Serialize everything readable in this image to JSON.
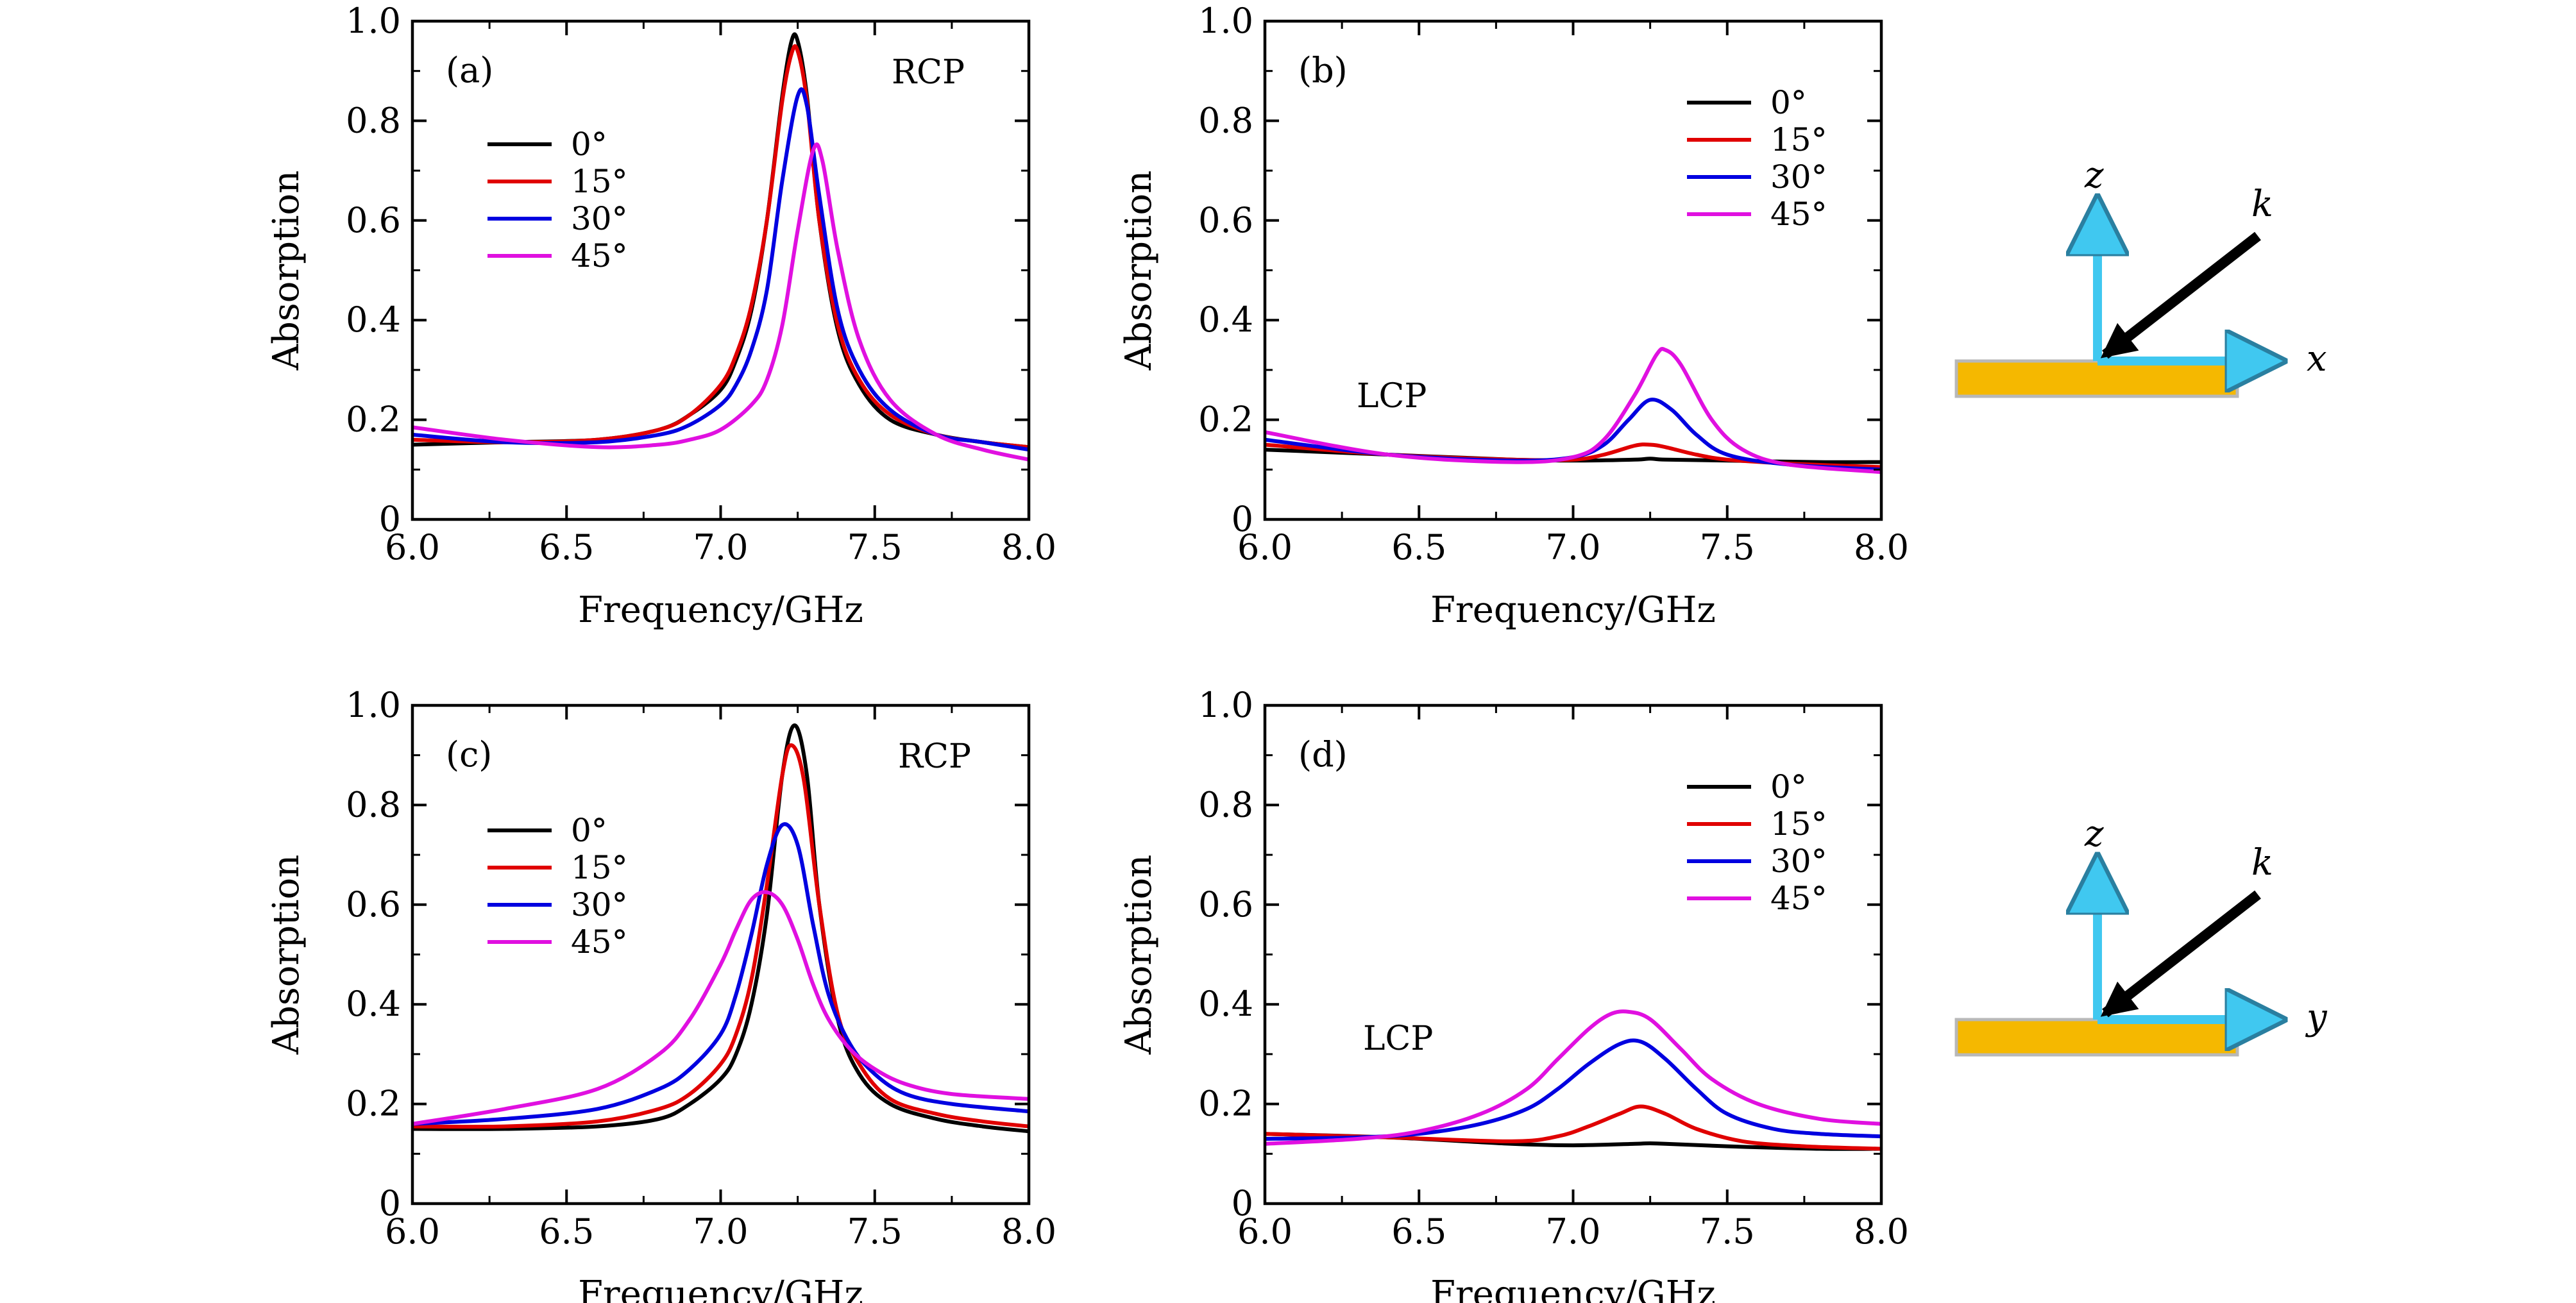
{
  "chart_data": [
    {
      "type": "line",
      "panel_label": "(a)",
      "annotation": "RCP",
      "xlabel": "Frequency/GHz",
      "ylabel": "Absorption",
      "xlim": [
        6.0,
        8.0
      ],
      "ylim": [
        0,
        1.0
      ],
      "xticks": [
        "6.0",
        "6.5",
        "7.0",
        "7.5",
        "8.0"
      ],
      "yticks": [
        "0",
        "0.2",
        "0.4",
        "0.6",
        "0.8",
        "1.0"
      ],
      "legend_position": "upper-left",
      "series": [
        {
          "name": "0°",
          "color": "#000000",
          "x": [
            6.0,
            6.3,
            6.6,
            6.8,
            6.9,
            7.0,
            7.05,
            7.1,
            7.15,
            7.2,
            7.23,
            7.25,
            7.28,
            7.32,
            7.38,
            7.45,
            7.55,
            7.7,
            7.85,
            8.0
          ],
          "y": [
            0.15,
            0.155,
            0.16,
            0.18,
            0.21,
            0.26,
            0.32,
            0.42,
            0.6,
            0.85,
            0.96,
            0.96,
            0.85,
            0.6,
            0.38,
            0.27,
            0.2,
            0.17,
            0.155,
            0.145
          ]
        },
        {
          "name": "15°",
          "color": "#e00000",
          "x": [
            6.0,
            6.3,
            6.6,
            6.8,
            6.9,
            7.0,
            7.05,
            7.1,
            7.15,
            7.2,
            7.23,
            7.25,
            7.28,
            7.32,
            7.38,
            7.45,
            7.55,
            7.7,
            7.85,
            8.0
          ],
          "y": [
            0.16,
            0.155,
            0.16,
            0.18,
            0.21,
            0.27,
            0.33,
            0.43,
            0.6,
            0.84,
            0.935,
            0.94,
            0.84,
            0.6,
            0.39,
            0.28,
            0.21,
            0.17,
            0.155,
            0.145
          ]
        },
        {
          "name": "30°",
          "color": "#0000e0",
          "x": [
            6.0,
            6.3,
            6.6,
            6.8,
            6.9,
            7.0,
            7.05,
            7.1,
            7.15,
            7.2,
            7.25,
            7.28,
            7.32,
            7.38,
            7.45,
            7.55,
            7.7,
            7.85,
            8.0
          ],
          "y": [
            0.17,
            0.155,
            0.155,
            0.17,
            0.19,
            0.23,
            0.27,
            0.34,
            0.46,
            0.68,
            0.85,
            0.83,
            0.65,
            0.42,
            0.3,
            0.22,
            0.17,
            0.155,
            0.14
          ]
        },
        {
          "name": "45°",
          "color": "#e010e0",
          "x": [
            6.0,
            6.3,
            6.6,
            6.8,
            6.9,
            7.0,
            7.1,
            7.15,
            7.2,
            7.25,
            7.3,
            7.33,
            7.38,
            7.45,
            7.55,
            7.7,
            7.85,
            8.0
          ],
          "y": [
            0.185,
            0.16,
            0.145,
            0.15,
            0.16,
            0.18,
            0.23,
            0.28,
            0.39,
            0.58,
            0.74,
            0.72,
            0.54,
            0.36,
            0.24,
            0.17,
            0.14,
            0.12
          ]
        }
      ]
    },
    {
      "type": "line",
      "panel_label": "(b)",
      "annotation": "LCP",
      "xlabel": "Frequency/GHz",
      "ylabel": "Absorption",
      "xlim": [
        6.0,
        8.0
      ],
      "ylim": [
        0,
        1.0
      ],
      "xticks": [
        "6.0",
        "6.5",
        "7.0",
        "7.5",
        "8.0"
      ],
      "yticks": [
        "0",
        "0.2",
        "0.4",
        "0.6",
        "0.8",
        "1.0"
      ],
      "legend_position": "upper-right",
      "series": [
        {
          "name": "0°",
          "color": "#000000",
          "x": [
            6.0,
            6.4,
            6.8,
            7.0,
            7.2,
            7.25,
            7.3,
            7.5,
            7.8,
            8.0
          ],
          "y": [
            0.14,
            0.13,
            0.12,
            0.118,
            0.12,
            0.122,
            0.12,
            0.118,
            0.115,
            0.115
          ]
        },
        {
          "name": "15°",
          "color": "#e00000",
          "x": [
            6.0,
            6.4,
            6.8,
            7.0,
            7.1,
            7.2,
            7.25,
            7.3,
            7.4,
            7.5,
            7.7,
            8.0
          ],
          "y": [
            0.15,
            0.13,
            0.12,
            0.12,
            0.13,
            0.148,
            0.15,
            0.145,
            0.13,
            0.12,
            0.112,
            0.105
          ]
        },
        {
          "name": "30°",
          "color": "#0000e0",
          "x": [
            6.0,
            6.4,
            6.8,
            7.0,
            7.1,
            7.18,
            7.25,
            7.32,
            7.4,
            7.5,
            7.7,
            8.0
          ],
          "y": [
            0.16,
            0.13,
            0.118,
            0.125,
            0.15,
            0.2,
            0.24,
            0.22,
            0.17,
            0.13,
            0.11,
            0.1
          ]
        },
        {
          "name": "45°",
          "color": "#e010e0",
          "x": [
            6.0,
            6.4,
            6.8,
            7.0,
            7.1,
            7.2,
            7.27,
            7.3,
            7.35,
            7.45,
            7.55,
            7.7,
            8.0
          ],
          "y": [
            0.175,
            0.13,
            0.115,
            0.125,
            0.16,
            0.25,
            0.33,
            0.34,
            0.31,
            0.2,
            0.14,
            0.11,
            0.095
          ]
        }
      ]
    },
    {
      "type": "line",
      "panel_label": "(c)",
      "annotation": "RCP",
      "xlabel": "Frequency/GHz",
      "ylabel": "Absorption",
      "xlim": [
        6.0,
        8.0
      ],
      "ylim": [
        0,
        1.0
      ],
      "xticks": [
        "6.0",
        "6.5",
        "7.0",
        "7.5",
        "8.0"
      ],
      "yticks": [
        "0",
        "0.2",
        "0.4",
        "0.6",
        "0.8",
        "1.0"
      ],
      "legend_position": "upper-left",
      "series": [
        {
          "name": "0°",
          "color": "#000000",
          "x": [
            6.0,
            6.3,
            6.6,
            6.8,
            6.9,
            7.0,
            7.05,
            7.1,
            7.15,
            7.2,
            7.24,
            7.28,
            7.32,
            7.38,
            7.45,
            7.55,
            7.7,
            7.85,
            8.0
          ],
          "y": [
            0.15,
            0.15,
            0.155,
            0.17,
            0.2,
            0.25,
            0.3,
            0.4,
            0.58,
            0.86,
            0.96,
            0.86,
            0.6,
            0.37,
            0.26,
            0.2,
            0.17,
            0.155,
            0.145
          ]
        },
        {
          "name": "15°",
          "color": "#e00000",
          "x": [
            6.0,
            6.3,
            6.6,
            6.8,
            6.9,
            7.0,
            7.05,
            7.1,
            7.15,
            7.2,
            7.23,
            7.27,
            7.32,
            7.38,
            7.45,
            7.55,
            7.7,
            7.85,
            8.0
          ],
          "y": [
            0.155,
            0.155,
            0.165,
            0.19,
            0.22,
            0.28,
            0.34,
            0.45,
            0.64,
            0.86,
            0.92,
            0.85,
            0.6,
            0.38,
            0.28,
            0.21,
            0.18,
            0.165,
            0.155
          ]
        },
        {
          "name": "30°",
          "color": "#0000e0",
          "x": [
            6.0,
            6.3,
            6.6,
            6.8,
            6.9,
            7.0,
            7.05,
            7.1,
            7.15,
            7.2,
            7.25,
            7.3,
            7.35,
            7.42,
            7.5,
            7.6,
            7.75,
            8.0
          ],
          "y": [
            0.16,
            0.17,
            0.19,
            0.23,
            0.27,
            0.34,
            0.42,
            0.54,
            0.68,
            0.76,
            0.72,
            0.56,
            0.42,
            0.32,
            0.26,
            0.22,
            0.2,
            0.185
          ]
        },
        {
          "name": "45°",
          "color": "#e010e0",
          "x": [
            6.0,
            6.3,
            6.6,
            6.8,
            6.9,
            7.0,
            7.05,
            7.1,
            7.15,
            7.2,
            7.25,
            7.3,
            7.35,
            7.42,
            7.5,
            7.6,
            7.75,
            8.0
          ],
          "y": [
            0.16,
            0.19,
            0.23,
            0.3,
            0.37,
            0.48,
            0.55,
            0.61,
            0.625,
            0.6,
            0.53,
            0.44,
            0.37,
            0.31,
            0.27,
            0.24,
            0.22,
            0.21
          ]
        }
      ]
    },
    {
      "type": "line",
      "panel_label": "(d)",
      "annotation": "LCP",
      "xlabel": "Frequency/GHz",
      "ylabel": "Absorption",
      "xlim": [
        6.0,
        8.0
      ],
      "ylim": [
        0,
        1.0
      ],
      "xticks": [
        "6.0",
        "6.5",
        "7.0",
        "7.5",
        "8.0"
      ],
      "yticks": [
        "0",
        "0.2",
        "0.4",
        "0.6",
        "0.8",
        "1.0"
      ],
      "legend_position": "upper-right",
      "series": [
        {
          "name": "0°",
          "color": "#000000",
          "x": [
            6.0,
            6.4,
            6.8,
            7.0,
            7.2,
            7.25,
            7.3,
            7.5,
            7.8,
            8.0
          ],
          "y": [
            0.14,
            0.133,
            0.12,
            0.117,
            0.12,
            0.121,
            0.12,
            0.115,
            0.11,
            0.11
          ]
        },
        {
          "name": "15°",
          "color": "#e00000",
          "x": [
            6.0,
            6.4,
            6.8,
            6.95,
            7.05,
            7.15,
            7.22,
            7.3,
            7.4,
            7.55,
            7.75,
            8.0
          ],
          "y": [
            0.14,
            0.133,
            0.125,
            0.135,
            0.155,
            0.18,
            0.195,
            0.18,
            0.15,
            0.125,
            0.115,
            0.11
          ]
        },
        {
          "name": "30°",
          "color": "#0000e0",
          "x": [
            6.0,
            6.3,
            6.5,
            6.7,
            6.85,
            6.95,
            7.05,
            7.15,
            7.22,
            7.3,
            7.4,
            7.5,
            7.65,
            7.8,
            8.0
          ],
          "y": [
            0.13,
            0.133,
            0.14,
            0.16,
            0.19,
            0.23,
            0.28,
            0.32,
            0.325,
            0.29,
            0.23,
            0.18,
            0.15,
            0.14,
            0.135
          ]
        },
        {
          "name": "45°",
          "color": "#e010e0",
          "x": [
            6.0,
            6.3,
            6.5,
            6.7,
            6.85,
            6.95,
            7.05,
            7.12,
            7.18,
            7.25,
            7.35,
            7.45,
            7.6,
            7.8,
            8.0
          ],
          "y": [
            0.12,
            0.13,
            0.145,
            0.18,
            0.23,
            0.29,
            0.35,
            0.38,
            0.385,
            0.37,
            0.31,
            0.25,
            0.2,
            0.17,
            0.16
          ]
        }
      ]
    }
  ],
  "diagrams": [
    {
      "vertical_axis": "z",
      "horizontal_axis": "x",
      "wave_vector": "k",
      "axis_color": "#40c8f0",
      "slab_color": "#f5b800"
    },
    {
      "vertical_axis": "z",
      "horizontal_axis": "y",
      "wave_vector": "k",
      "axis_color": "#40c8f0",
      "slab_color": "#f5b800"
    }
  ]
}
